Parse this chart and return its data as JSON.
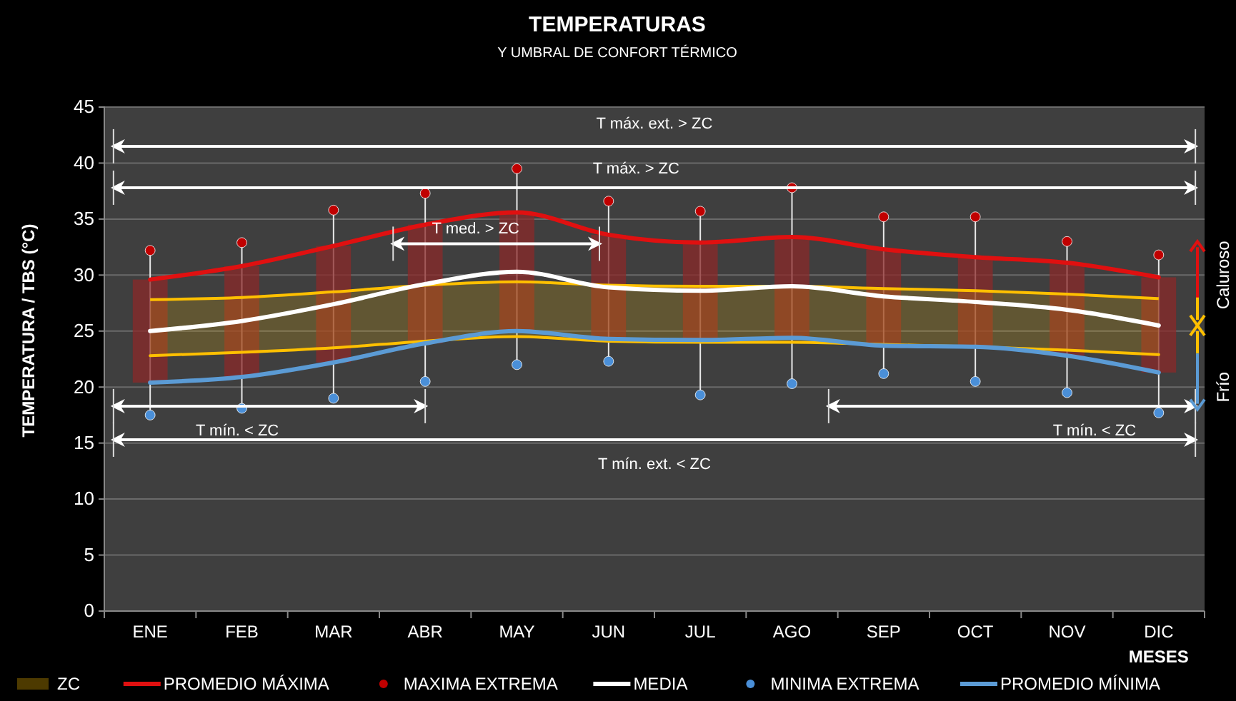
{
  "chart_data": {
    "type": "line",
    "title": "TEMPERATURAS",
    "subtitle": "Y UMBRAL DE CONFORT TÉRMICO",
    "xlabel": "MESES",
    "ylabel": "TEMPERATURA / TBS  (°C)",
    "categories": [
      "ENE",
      "FEB",
      "MAR",
      "ABR",
      "MAY",
      "JUN",
      "JUL",
      "AGO",
      "SEP",
      "OCT",
      "NOV",
      "DIC"
    ],
    "series": [
      {
        "type": "bar",
        "color": "#8b2a2a",
        "base": [
          20.4,
          20.9,
          22.2,
          23.9,
          25,
          24.3,
          24.2,
          24.4,
          23.7,
          23.6,
          22.8,
          21.3
        ],
        "values": [
          9.2,
          9.9,
          10.4,
          10.6,
          10.6,
          9.3,
          8.7,
          9,
          8.6,
          8,
          8.3,
          8.5
        ]
      },
      {
        "type": "line",
        "color": "#ffc000",
        "values": [
          22.8,
          23.1,
          23.5,
          24.1,
          24.5,
          24.1,
          24,
          24,
          23.8,
          23.6,
          23.3,
          22.9
        ]
      },
      {
        "name": "ZC",
        "type": "area",
        "color": "#ffc000",
        "values": [
          27.8,
          28,
          28.5,
          29.1,
          29.4,
          29.1,
          29,
          29,
          28.8,
          28.6,
          28.3,
          27.9
        ]
      },
      {
        "name": "PROMEDIO MÁXIMA",
        "color": "#e01010",
        "values": [
          29.6,
          30.8,
          32.6,
          34.5,
          35.6,
          33.6,
          32.9,
          33.4,
          32.3,
          31.6,
          31.1,
          29.8
        ]
      },
      {
        "name": "MAXIMA EXTREMA",
        "type": "scatter",
        "marker": "circle",
        "color": "#c00000",
        "values": [
          32.2,
          32.9,
          35.8,
          37.3,
          39.5,
          36.6,
          35.7,
          37.8,
          35.2,
          35.2,
          33,
          31.8
        ]
      },
      {
        "name": "MEDIA",
        "color": "#ffffff",
        "values": [
          25,
          25.9,
          27.4,
          29.2,
          30.3,
          28.9,
          28.6,
          29,
          28.1,
          27.6,
          26.9,
          25.5
        ]
      },
      {
        "name": "MINIMA EXTREMA",
        "type": "scatter",
        "marker": "circle",
        "color": "#4a8fd8",
        "values": [
          17.5,
          18.1,
          19,
          20.5,
          22,
          22.3,
          19.3,
          20.3,
          21.2,
          20.5,
          19.5,
          17.7
        ]
      },
      {
        "name": "PROMEDIO MÍNIMA",
        "color": "#5b9bd5",
        "values": [
          20.4,
          20.9,
          22.2,
          23.9,
          25,
          24.3,
          24.2,
          24.4,
          23.7,
          23.6,
          22.8,
          21.3
        ]
      }
    ],
    "ylim": [
      0,
      45
    ],
    "yticks": [
      0,
      5,
      10,
      15,
      20,
      25,
      30,
      35,
      40,
      45
    ],
    "grid": "y",
    "legend": "bottom",
    "annotations": [
      "T máx. ext. > ZC",
      "T máx. > ZC",
      "T med. > ZC",
      "T mín. < ZC",
      "T mín. < ZC",
      "T mín. ext. < ZC",
      "Caluroso",
      "Frío"
    ]
  }
}
